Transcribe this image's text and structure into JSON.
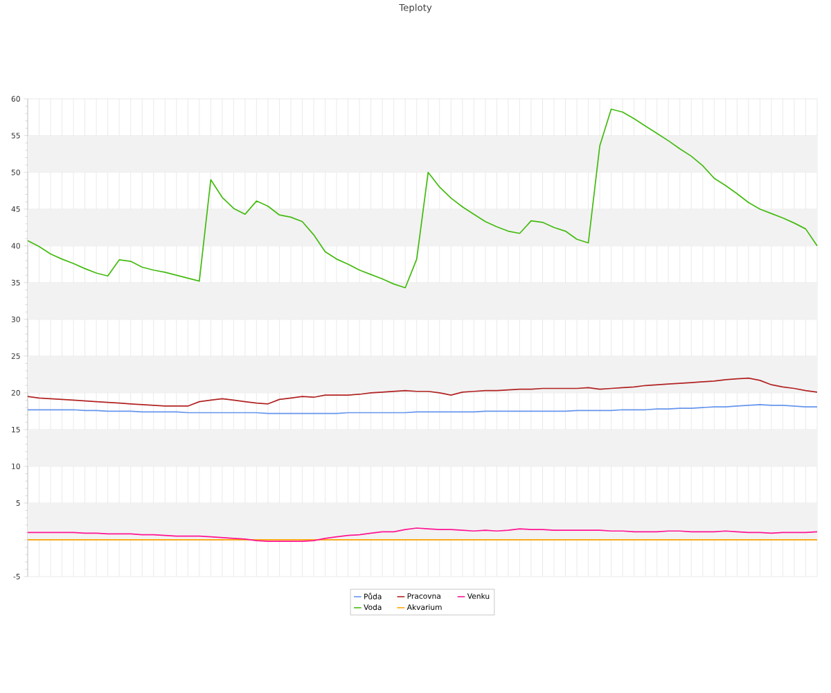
{
  "chart_data": {
    "type": "line",
    "title": "Teploty",
    "categories": [
      null,
      null,
      null,
      null,
      null,
      null,
      null,
      null,
      null,
      null,
      null,
      null,
      null,
      null,
      null,
      null,
      null,
      null,
      null,
      null,
      null,
      null,
      null,
      null,
      null,
      null,
      null,
      null,
      null,
      null,
      null,
      null,
      null,
      null,
      null,
      null,
      null,
      null,
      null,
      null,
      null,
      null,
      null,
      null,
      null,
      null,
      null,
      null,
      null,
      null,
      null,
      null,
      null,
      null,
      null,
      null,
      null,
      null,
      null,
      null,
      null,
      null,
      null,
      null,
      null,
      null,
      null,
      null,
      null,
      null
    ],
    "ylim": [
      -5,
      60
    ],
    "yticks": [
      -5,
      {
        "value": 0,
        "label": null
      },
      5,
      10,
      15,
      20,
      25,
      30,
      35,
      40,
      45,
      50,
      55,
      60
    ],
    "grid": true,
    "tick_labels": "y",
    "legend": "bottom",
    "marker": "none",
    "line_style": "solid",
    "bands": [
      {
        "axis": "y",
        "from": 0,
        "to": 5,
        "color": "#f2f2f2"
      },
      {
        "axis": "y",
        "from": 10,
        "to": 15,
        "color": "#f2f2f2"
      },
      {
        "axis": "y",
        "from": 20,
        "to": 25,
        "color": "#f2f2f2"
      },
      {
        "axis": "y",
        "from": 30,
        "to": 35,
        "color": "#f2f2f2"
      },
      {
        "axis": "y",
        "from": 40,
        "to": 45,
        "color": "#f2f2f2"
      },
      {
        "axis": "y",
        "from": 50,
        "to": 55,
        "color": "#f2f2f2"
      }
    ],
    "series": [
      {
        "name": "Půda",
        "color": "#6495ed",
        "values": [
          17.7,
          17.7,
          17.7,
          17.7,
          17.7,
          17.6,
          17.6,
          17.5,
          17.5,
          17.5,
          17.4,
          17.4,
          17.4,
          17.4,
          17.3,
          17.3,
          17.3,
          17.3,
          17.3,
          17.3,
          17.3,
          17.2,
          17.2,
          17.2,
          17.2,
          17.2,
          17.2,
          17.2,
          17.3,
          17.3,
          17.3,
          17.3,
          17.3,
          17.3,
          17.4,
          17.4,
          17.4,
          17.4,
          17.4,
          17.4,
          17.5,
          17.5,
          17.5,
          17.5,
          17.5,
          17.5,
          17.5,
          17.5,
          17.6,
          17.6,
          17.6,
          17.6,
          17.7,
          17.7,
          17.7,
          17.8,
          17.8,
          17.9,
          17.9,
          18.0,
          18.1,
          18.1,
          18.2,
          18.3,
          18.4,
          18.3,
          18.3,
          18.2,
          18.1,
          18.1
        ]
      },
      {
        "name": "Voda",
        "color": "#44bb11",
        "values": [
          40.7,
          39.9,
          38.9,
          38.2,
          37.6,
          36.9,
          36.3,
          35.9,
          38.1,
          37.9,
          37.1,
          36.7,
          36.4,
          36.0,
          35.6,
          35.2,
          49.0,
          46.6,
          45.1,
          44.3,
          46.1,
          45.4,
          44.2,
          43.9,
          43.3,
          41.5,
          39.2,
          38.2,
          37.5,
          36.7,
          36.1,
          35.5,
          34.8,
          34.3,
          38.2,
          50.0,
          48.0,
          46.5,
          45.3,
          44.3,
          43.3,
          42.6,
          42.0,
          41.7,
          43.4,
          43.2,
          42.5,
          42.0,
          40.9,
          40.4,
          53.6,
          58.6,
          58.2,
          57.3,
          56.3,
          55.3,
          54.3,
          53.2,
          52.2,
          50.9,
          49.2,
          48.2,
          47.1,
          45.9,
          45.0,
          44.4,
          43.8,
          43.1,
          42.3,
          40.0
        ]
      },
      {
        "name": "Pracovna",
        "color": "#b22222",
        "values": [
          19.5,
          19.3,
          19.2,
          19.1,
          19.0,
          18.9,
          18.8,
          18.7,
          18.6,
          18.5,
          18.4,
          18.3,
          18.2,
          18.2,
          18.2,
          18.8,
          19.0,
          19.2,
          19.0,
          18.8,
          18.6,
          18.5,
          19.1,
          19.3,
          19.5,
          19.4,
          19.7,
          19.7,
          19.7,
          19.8,
          20.0,
          20.1,
          20.2,
          20.3,
          20.2,
          20.2,
          20.0,
          19.7,
          20.1,
          20.2,
          20.3,
          20.3,
          20.4,
          20.5,
          20.5,
          20.6,
          20.6,
          20.6,
          20.6,
          20.7,
          20.5,
          20.6,
          20.7,
          20.8,
          21.0,
          21.1,
          21.2,
          21.3,
          21.4,
          21.5,
          21.6,
          21.8,
          21.9,
          22.0,
          21.7,
          21.1,
          20.8,
          20.6,
          20.3,
          20.1
        ]
      },
      {
        "name": "Akvarium",
        "color": "#ffa500",
        "values": [
          0,
          0,
          0,
          0,
          0,
          0,
          0,
          0,
          0,
          0,
          0,
          0,
          0,
          0,
          0,
          0,
          0,
          0,
          0,
          0,
          0,
          0,
          0,
          0,
          0,
          0,
          0,
          0,
          0,
          0,
          0,
          0,
          0,
          0,
          0,
          0,
          0,
          0,
          0,
          0,
          0,
          0,
          0,
          0,
          0,
          0,
          0,
          0,
          0,
          0,
          0,
          0,
          0,
          0,
          0,
          0,
          0,
          0,
          0,
          0,
          0,
          0,
          0,
          0,
          0,
          0,
          0,
          0,
          0,
          0
        ]
      },
      {
        "name": "Venku",
        "color": "#ff1493",
        "values": [
          1.0,
          1.0,
          1.0,
          1.0,
          1.0,
          0.9,
          0.9,
          0.8,
          0.8,
          0.8,
          0.7,
          0.7,
          0.6,
          0.5,
          0.5,
          0.5,
          0.4,
          0.3,
          0.2,
          0.1,
          -0.1,
          -0.2,
          -0.2,
          -0.2,
          -0.2,
          -0.1,
          0.2,
          0.4,
          0.6,
          0.7,
          0.9,
          1.1,
          1.1,
          1.4,
          1.6,
          1.5,
          1.4,
          1.4,
          1.3,
          1.2,
          1.3,
          1.2,
          1.3,
          1.5,
          1.4,
          1.4,
          1.3,
          1.3,
          1.3,
          1.3,
          1.3,
          1.2,
          1.2,
          1.1,
          1.1,
          1.1,
          1.2,
          1.2,
          1.1,
          1.1,
          1.1,
          1.2,
          1.1,
          1.0,
          1.0,
          0.9,
          1.0,
          1.0,
          1.0,
          1.1
        ]
      }
    ]
  }
}
